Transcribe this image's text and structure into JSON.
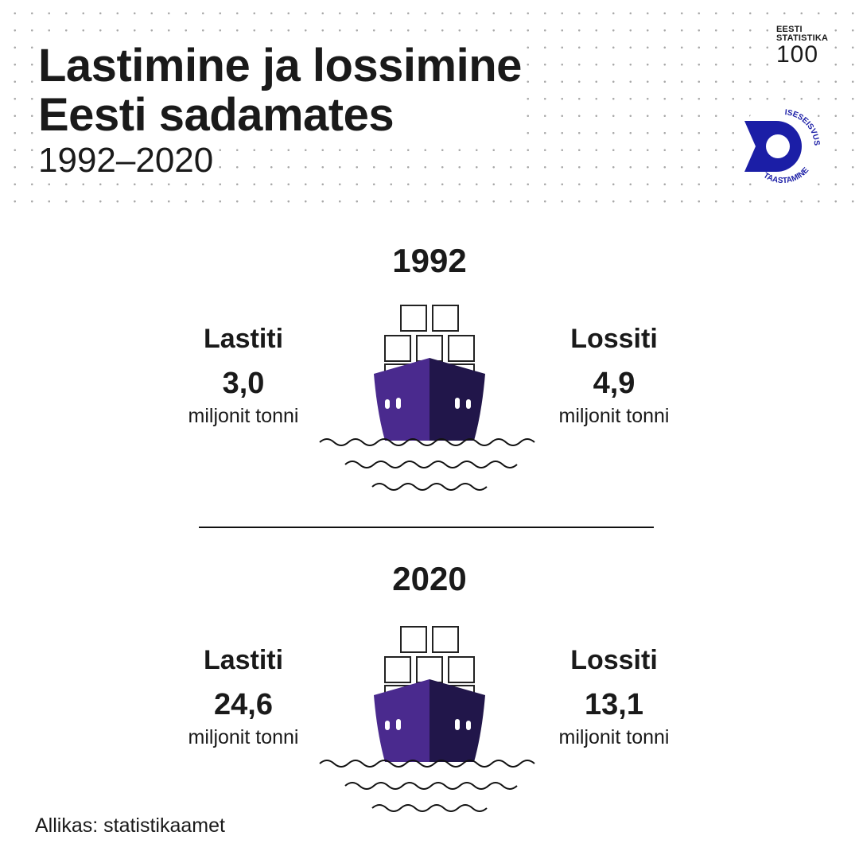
{
  "header": {
    "title_line1": "Lastimine ja lossimine",
    "title_line2": "Eesti sadamates",
    "subtitle": "1992–2020"
  },
  "logos": {
    "stat100": {
      "line1": "EESTI",
      "line2": "STATISTIKA",
      "line3": "100",
      "icon": "eesti-statistika-100-logo"
    },
    "independence": {
      "text_top": "ISESEISVUSE 30",
      "text_bottom": "TAASTAMINE",
      "icon": "iseseisvuse-taastamine-30-logo",
      "color": "#1b1ea6"
    }
  },
  "panels": [
    {
      "year": "1992",
      "loaded_label": "Lastiti",
      "loaded_value": "3,0",
      "unloaded_label": "Lossiti",
      "unloaded_value": "4,9",
      "unit": "miljonit tonni"
    },
    {
      "year": "2020",
      "loaded_label": "Lastiti",
      "loaded_value": "24,6",
      "unloaded_label": "Lossiti",
      "unloaded_value": "13,1",
      "unit": "miljonit tonni"
    }
  ],
  "footer": {
    "source": "Allikas: statistikaamet"
  },
  "colors": {
    "hull_left": "#4a2a8e",
    "hull_right": "#21164a",
    "text": "#1a1a1a",
    "logo_blue": "#1b1ea6"
  }
}
